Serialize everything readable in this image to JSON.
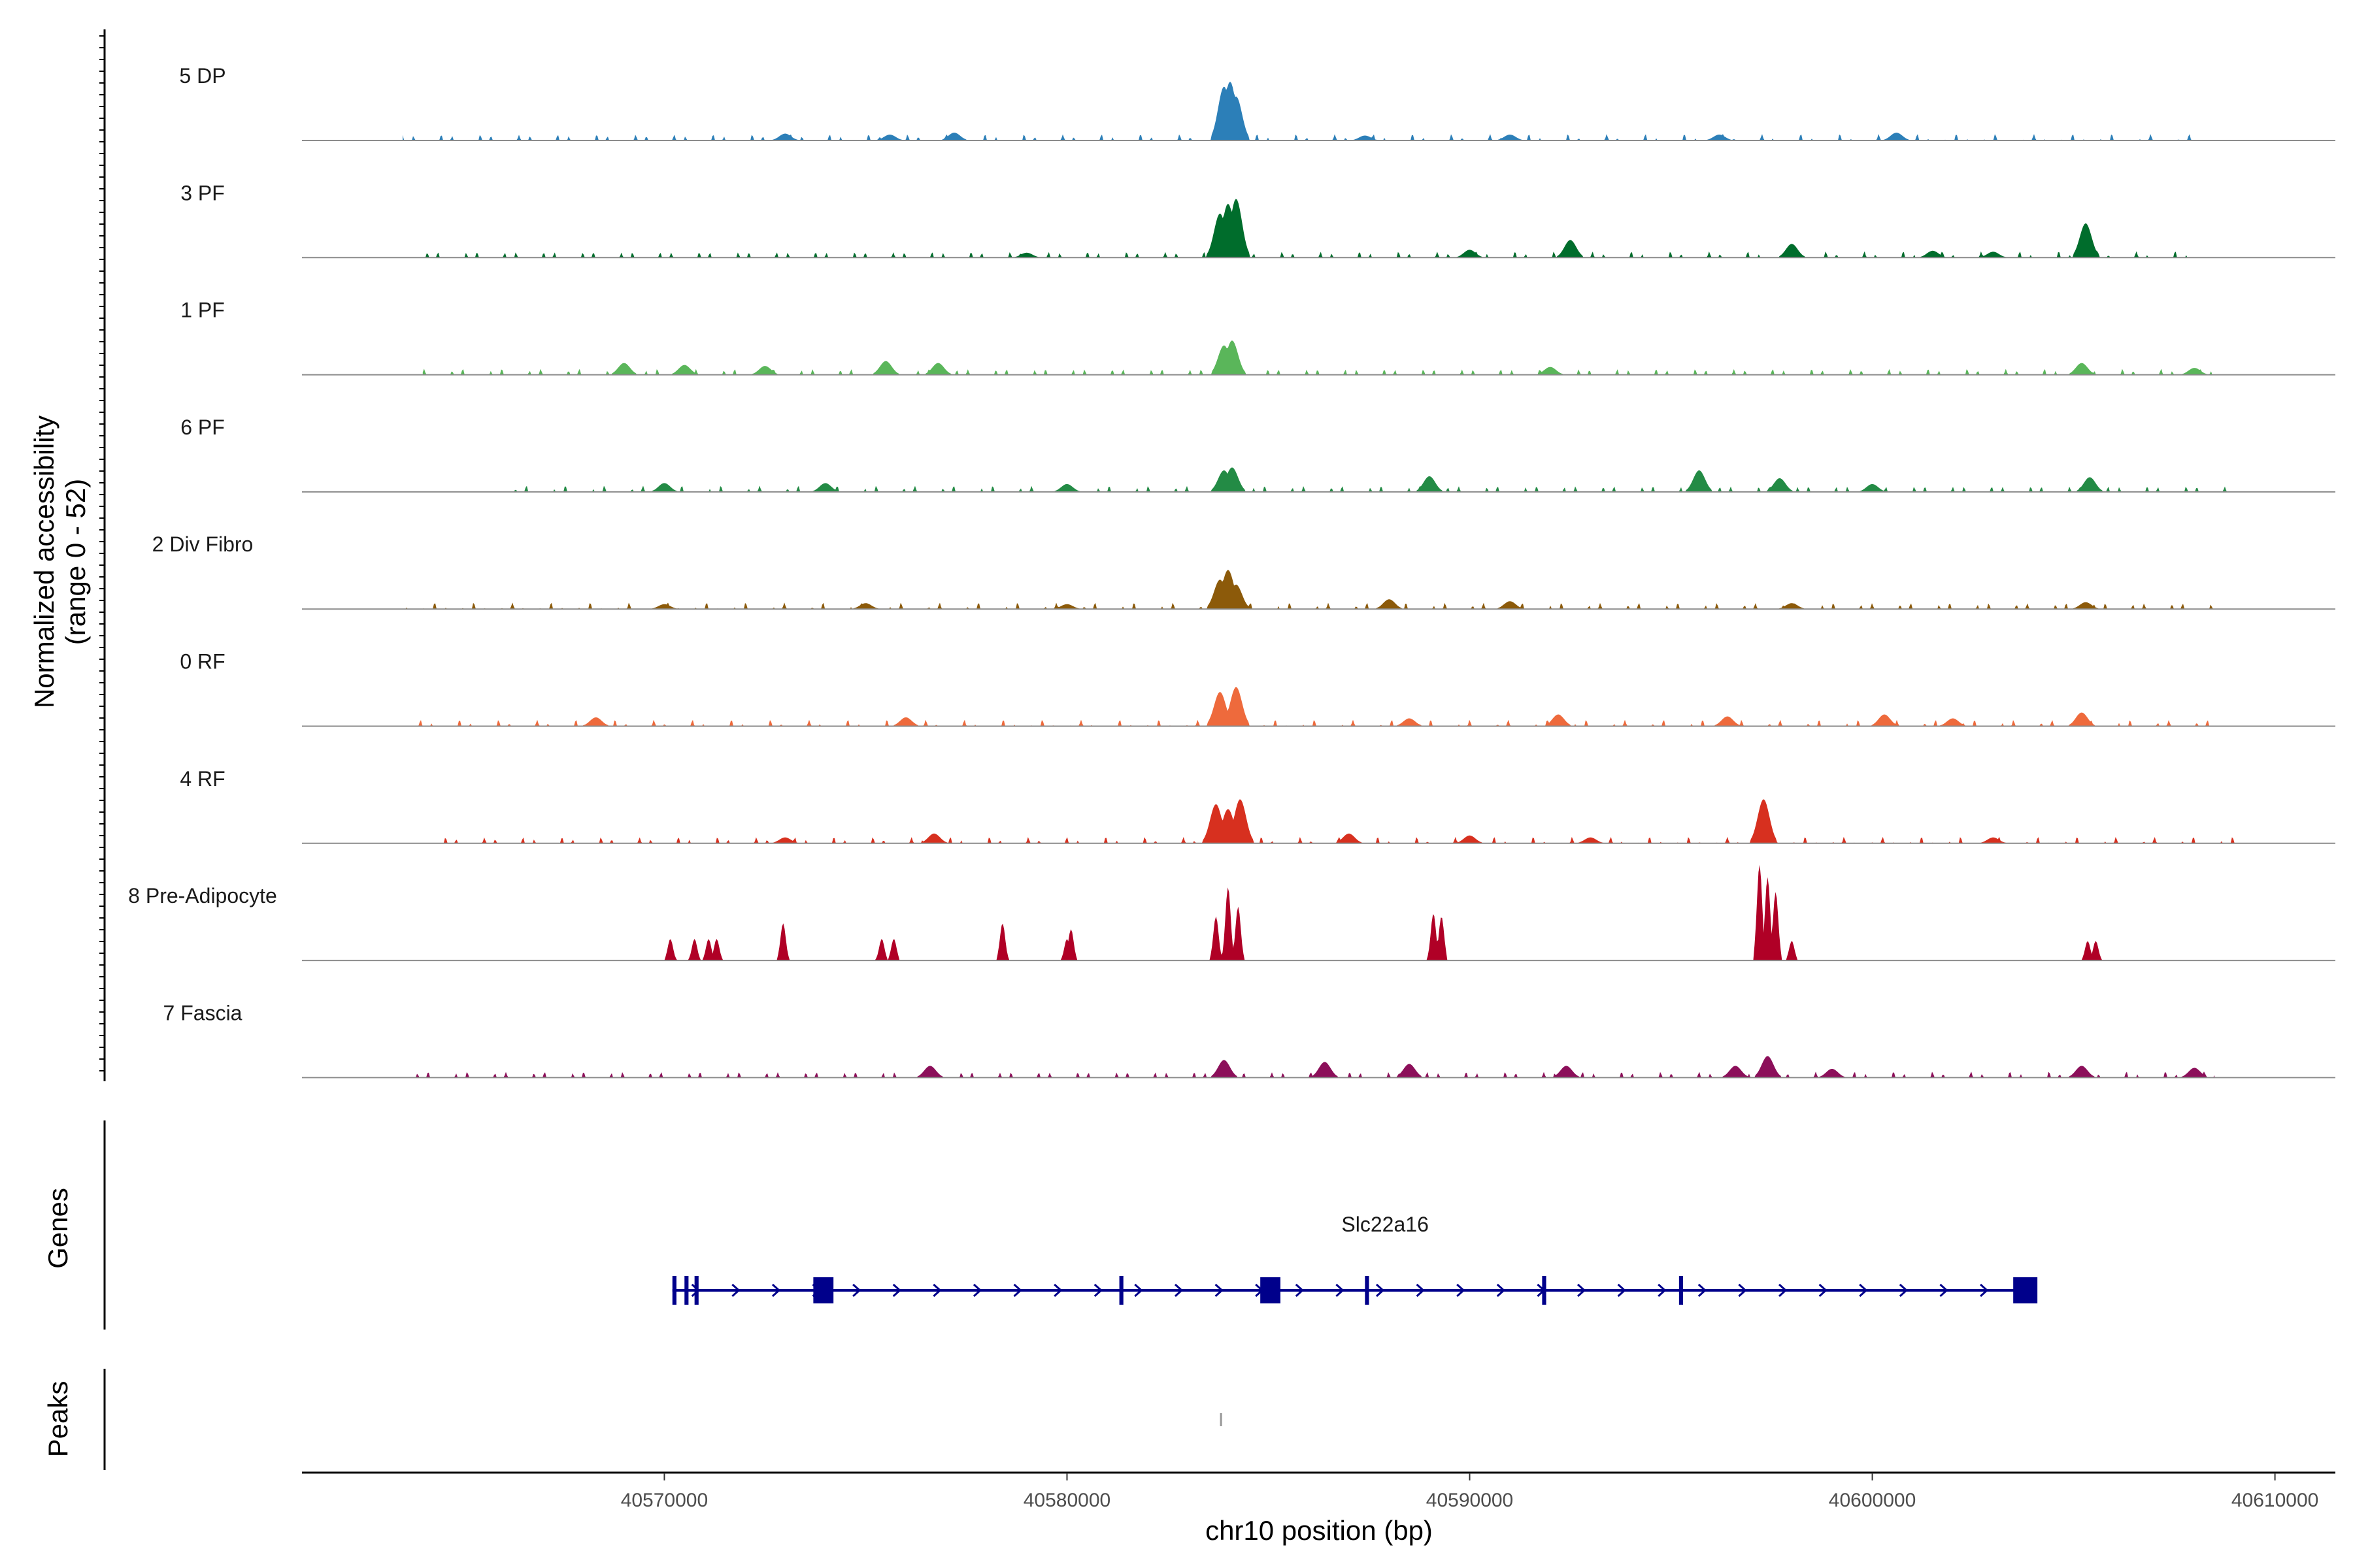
{
  "chart_data": {
    "type": "area",
    "title": "",
    "ylabel_line1": "Normalized accessibility",
    "ylabel_line2": "(range 0 - 52)",
    "ylim": [
      0,
      52
    ],
    "xlabel": "chr10 position (bp)",
    "xlim": [
      40561000,
      40611500
    ],
    "x_ticks": [
      40570000,
      40580000,
      40590000,
      40600000,
      40610000
    ],
    "x_tick_labels": [
      "40570000",
      "40580000",
      "40590000",
      "40600000",
      "40610000"
    ],
    "series": [
      {
        "name": "5 DP",
        "color": "#2c7fb8",
        "range": [
          40563500,
          40608000
        ],
        "peaks": [
          [
            40583900,
            0.55
          ],
          [
            40584050,
            0.6
          ],
          [
            40584200,
            0.45
          ],
          [
            40577200,
            0.08
          ],
          [
            40573000,
            0.07
          ],
          [
            40600600,
            0.08
          ],
          [
            40591000,
            0.06
          ],
          [
            40596200,
            0.06
          ],
          [
            40587400,
            0.05
          ],
          [
            40575600,
            0.06
          ]
        ]
      },
      {
        "name": "3 PF",
        "color": "#006d2c",
        "range": [
          40564000,
          40608000
        ],
        "peaks": [
          [
            40583800,
            0.45
          ],
          [
            40584000,
            0.55
          ],
          [
            40584200,
            0.6
          ],
          [
            40605300,
            0.35
          ],
          [
            40592500,
            0.18
          ],
          [
            40598000,
            0.14
          ],
          [
            40590000,
            0.08
          ],
          [
            40601500,
            0.07
          ],
          [
            40579000,
            0.05
          ],
          [
            40603000,
            0.06
          ]
        ]
      },
      {
        "name": "1 PF",
        "color": "#5ab65a",
        "range": [
          40564000,
          40609000
        ],
        "peaks": [
          [
            40583900,
            0.3
          ],
          [
            40584100,
            0.35
          ],
          [
            40605200,
            0.12
          ],
          [
            40569000,
            0.12
          ],
          [
            40570500,
            0.1
          ],
          [
            40575500,
            0.14
          ],
          [
            40576800,
            0.12
          ],
          [
            40572500,
            0.09
          ],
          [
            40592000,
            0.08
          ],
          [
            40608000,
            0.07
          ]
        ]
      },
      {
        "name": "6 PF",
        "color": "#238b45",
        "range": [
          40566000,
          40609000
        ],
        "peaks": [
          [
            40583900,
            0.22
          ],
          [
            40584100,
            0.25
          ],
          [
            40595700,
            0.22
          ],
          [
            40605400,
            0.15
          ],
          [
            40589000,
            0.16
          ],
          [
            40597700,
            0.14
          ],
          [
            40574000,
            0.09
          ],
          [
            40570000,
            0.09
          ],
          [
            40580000,
            0.08
          ],
          [
            40600000,
            0.08
          ]
        ]
      },
      {
        "name": "2 Div Fibro",
        "color": "#8c5a0a",
        "range": [
          40563500,
          40608500
        ],
        "peaks": [
          [
            40583800,
            0.3
          ],
          [
            40584000,
            0.4
          ],
          [
            40584200,
            0.25
          ],
          [
            40588000,
            0.1
          ],
          [
            40591000,
            0.08
          ],
          [
            40605300,
            0.07
          ],
          [
            40575000,
            0.06
          ],
          [
            40598000,
            0.06
          ],
          [
            40570000,
            0.05
          ],
          [
            40580000,
            0.05
          ]
        ]
      },
      {
        "name": "0 RF",
        "color": "#ee6a3c",
        "range": [
          40563500,
          40609000
        ],
        "peaks": [
          [
            40583800,
            0.35
          ],
          [
            40584200,
            0.4
          ],
          [
            40592200,
            0.12
          ],
          [
            40596400,
            0.1
          ],
          [
            40600300,
            0.12
          ],
          [
            40605200,
            0.14
          ],
          [
            40576000,
            0.09
          ],
          [
            40568300,
            0.09
          ],
          [
            40588500,
            0.08
          ],
          [
            40602000,
            0.08
          ]
        ]
      },
      {
        "name": "4 RF",
        "color": "#d7301f",
        "range": [
          40564000,
          40609000
        ],
        "peaks": [
          [
            40583700,
            0.4
          ],
          [
            40584000,
            0.35
          ],
          [
            40584300,
            0.45
          ],
          [
            40597300,
            0.45
          ],
          [
            40576700,
            0.1
          ],
          [
            40587000,
            0.1
          ],
          [
            40590000,
            0.08
          ],
          [
            40573000,
            0.06
          ],
          [
            40593000,
            0.06
          ],
          [
            40603000,
            0.06
          ]
        ]
      },
      {
        "name": "8 Pre-Adipocyte",
        "color": "#b00026",
        "range": [
          40570000,
          40606000
        ],
        "peaks": [
          [
            40570150,
            0.22
          ],
          [
            40570750,
            0.22
          ],
          [
            40571100,
            0.22
          ],
          [
            40571300,
            0.22
          ],
          [
            40572950,
            0.38
          ],
          [
            40575400,
            0.22
          ],
          [
            40575700,
            0.22
          ],
          [
            40578400,
            0.38
          ],
          [
            40580000,
            0.22
          ],
          [
            40580100,
            0.32
          ],
          [
            40583700,
            0.45
          ],
          [
            40584000,
            0.75
          ],
          [
            40584250,
            0.55
          ],
          [
            40589100,
            0.48
          ],
          [
            40589300,
            0.45
          ],
          [
            40597200,
            0.98
          ],
          [
            40597400,
            0.85
          ],
          [
            40597600,
            0.7
          ],
          [
            40598000,
            0.2
          ],
          [
            40605350,
            0.2
          ],
          [
            40605550,
            0.2
          ]
        ]
      },
      {
        "name": "7 Fascia",
        "color": "#8c0f5a",
        "range": [
          40563500,
          40608500
        ],
        "peaks": [
          [
            40597400,
            0.22
          ],
          [
            40583900,
            0.18
          ],
          [
            40586400,
            0.16
          ],
          [
            40576600,
            0.12
          ],
          [
            40588500,
            0.14
          ],
          [
            40592400,
            0.12
          ],
          [
            40596600,
            0.12
          ],
          [
            40599000,
            0.09
          ],
          [
            40605200,
            0.12
          ],
          [
            40608000,
            0.1
          ]
        ]
      }
    ],
    "gene": {
      "name": "Slc22a16",
      "color": "#00008b",
      "start": 40570200,
      "end": 40604000,
      "strand": "+",
      "exons": [
        [
          40570200,
          40570300
        ],
        [
          40570500,
          40570600
        ],
        [
          40570750,
          40570850
        ],
        [
          40573700,
          40574200
        ],
        [
          40581300,
          40581400
        ],
        [
          40584800,
          40585300
        ],
        [
          40587400,
          40587500
        ],
        [
          40591800,
          40591900
        ],
        [
          40595200,
          40595300
        ],
        [
          40603500,
          40604100
        ]
      ]
    },
    "peaks_track": {
      "color": "#999999",
      "regions": [
        [
          40583800,
          40583850
        ]
      ]
    },
    "panel_titles": {
      "genes": "Genes",
      "peaks": "Peaks"
    }
  }
}
